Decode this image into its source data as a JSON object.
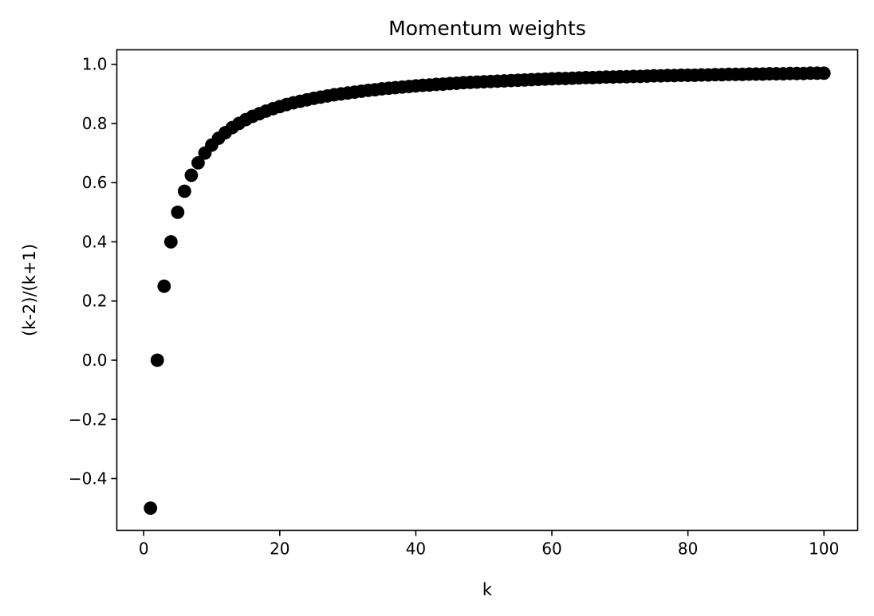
{
  "chart_data": {
    "type": "scatter",
    "title": "Momentum weights",
    "xlabel": "k",
    "ylabel": "(k-2)/(k+1)",
    "xlim": [
      -3.95,
      104.95
    ],
    "ylim": [
      -0.575,
      1.049
    ],
    "xticks": [
      0,
      20,
      40,
      60,
      80,
      100
    ],
    "xtick_labels": [
      "0",
      "20",
      "40",
      "60",
      "80",
      "100"
    ],
    "yticks": [
      -0.4,
      -0.2,
      0.0,
      0.2,
      0.4,
      0.6,
      0.8,
      1.0
    ],
    "ytick_labels": [
      "−0.4",
      "−0.2",
      "0.0",
      "0.2",
      "0.4",
      "0.6",
      "0.8",
      "1.0"
    ],
    "grid": false,
    "legend": "none",
    "marker_color": "#000000",
    "x": [
      1,
      2,
      3,
      4,
      5,
      6,
      7,
      8,
      9,
      10,
      11,
      12,
      13,
      14,
      15,
      16,
      17,
      18,
      19,
      20,
      21,
      22,
      23,
      24,
      25,
      26,
      27,
      28,
      29,
      30,
      31,
      32,
      33,
      34,
      35,
      36,
      37,
      38,
      39,
      40,
      41,
      42,
      43,
      44,
      45,
      46,
      47,
      48,
      49,
      50,
      51,
      52,
      53,
      54,
      55,
      56,
      57,
      58,
      59,
      60,
      61,
      62,
      63,
      64,
      65,
      66,
      67,
      68,
      69,
      70,
      71,
      72,
      73,
      74,
      75,
      76,
      77,
      78,
      79,
      80,
      81,
      82,
      83,
      84,
      85,
      86,
      87,
      88,
      89,
      90,
      91,
      92,
      93,
      94,
      95,
      96,
      97,
      98,
      99,
      100
    ],
    "y": [
      -0.5,
      0.0,
      0.25,
      0.4,
      0.5,
      0.571,
      0.625,
      0.667,
      0.7,
      0.727,
      0.75,
      0.769,
      0.786,
      0.8,
      0.813,
      0.824,
      0.833,
      0.842,
      0.85,
      0.857,
      0.864,
      0.87,
      0.875,
      0.88,
      0.885,
      0.889,
      0.893,
      0.897,
      0.9,
      0.903,
      0.906,
      0.909,
      0.912,
      0.914,
      0.917,
      0.919,
      0.921,
      0.923,
      0.925,
      0.927,
      0.929,
      0.93,
      0.932,
      0.933,
      0.935,
      0.936,
      0.938,
      0.939,
      0.94,
      0.941,
      0.942,
      0.943,
      0.944,
      0.945,
      0.946,
      0.947,
      0.948,
      0.949,
      0.95,
      0.951,
      0.952,
      0.952,
      0.953,
      0.954,
      0.955,
      0.955,
      0.956,
      0.957,
      0.957,
      0.958,
      0.958,
      0.959,
      0.959,
      0.96,
      0.961,
      0.961,
      0.962,
      0.962,
      0.963,
      0.963,
      0.963,
      0.964,
      0.964,
      0.965,
      0.965,
      0.966,
      0.966,
      0.966,
      0.967,
      0.967,
      0.967,
      0.968,
      0.968,
      0.968,
      0.969,
      0.969,
      0.969,
      0.97,
      0.97,
      0.97
    ]
  }
}
